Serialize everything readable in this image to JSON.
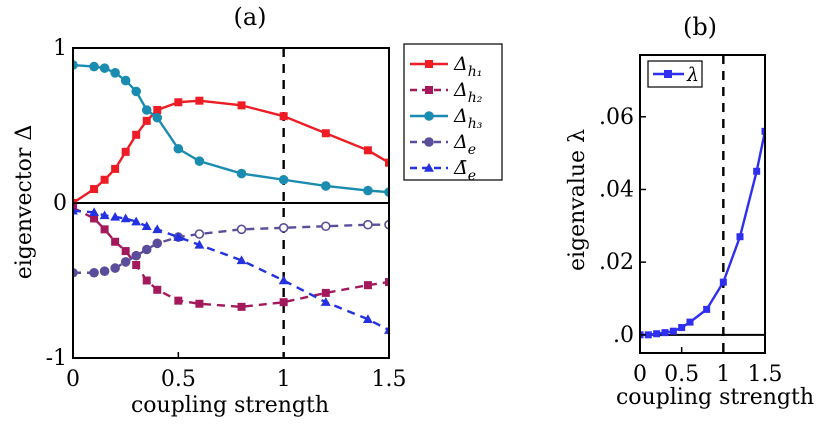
{
  "chart_data": [
    {
      "type": "line",
      "title": "(a)",
      "xlabel": "coupling strength",
      "ylabel": "eigenvector Δ",
      "xlim": [
        0,
        1.5
      ],
      "ylim": [
        -1,
        1
      ],
      "xticks": [
        "0",
        "0.5",
        "1",
        "1.5"
      ],
      "yticks": [
        "-1",
        "0",
        "1"
      ],
      "reference_lines": [
        {
          "orientation": "vertical",
          "x": 1,
          "style": "dashed",
          "color": "#000000"
        }
      ],
      "legend_position": "outside-right",
      "series": [
        {
          "name": "Δh1",
          "label_base": "Δ",
          "label_sub": "h₁",
          "color": "#ee1c24",
          "marker": "square",
          "dash": false,
          "x": [
            0,
            0.1,
            0.15,
            0.2,
            0.25,
            0.3,
            0.35,
            0.4,
            0.5,
            0.6,
            0.8,
            1.0,
            1.2,
            1.4,
            1.5
          ],
          "y": [
            0.0,
            0.09,
            0.15,
            0.22,
            0.33,
            0.44,
            0.53,
            0.6,
            0.65,
            0.66,
            0.63,
            0.56,
            0.45,
            0.34,
            0.26
          ]
        },
        {
          "name": "Δh2",
          "label_base": "Δ",
          "label_sub": "h₂",
          "color": "#a3195b",
          "marker": "square",
          "dash": true,
          "x": [
            0,
            0.1,
            0.15,
            0.2,
            0.25,
            0.3,
            0.35,
            0.4,
            0.5,
            0.6,
            0.8,
            1.0,
            1.2,
            1.4,
            1.5
          ],
          "y": [
            -0.03,
            -0.1,
            -0.17,
            -0.25,
            -0.31,
            -0.4,
            -0.5,
            -0.56,
            -0.63,
            -0.65,
            -0.67,
            -0.64,
            -0.58,
            -0.53,
            -0.51
          ]
        },
        {
          "name": "Δh3",
          "label_base": "Δ",
          "label_sub": "h₃",
          "color": "#1a8cb0",
          "marker": "circle",
          "dash": false,
          "x": [
            0,
            0.1,
            0.15,
            0.2,
            0.25,
            0.3,
            0.35,
            0.4,
            0.5,
            0.6,
            0.8,
            1.0,
            1.2,
            1.4,
            1.5
          ],
          "y": [
            0.89,
            0.88,
            0.87,
            0.84,
            0.79,
            0.72,
            0.6,
            0.55,
            0.35,
            0.27,
            0.19,
            0.15,
            0.11,
            0.08,
            0.07
          ]
        },
        {
          "name": "Δe",
          "label_base": "Δ",
          "label_sub": "e",
          "color": "#5b4d9a",
          "marker": "circle",
          "dash": true,
          "hollow_from_x": 0.6,
          "x": [
            0,
            0.1,
            0.15,
            0.2,
            0.25,
            0.3,
            0.35,
            0.4,
            0.5,
            0.6,
            0.8,
            1.0,
            1.2,
            1.4,
            1.5
          ],
          "y": [
            -0.45,
            -0.45,
            -0.44,
            -0.42,
            -0.38,
            -0.34,
            -0.3,
            -0.26,
            -0.22,
            -0.2,
            -0.17,
            -0.16,
            -0.15,
            -0.14,
            -0.14
          ]
        },
        {
          "name": "Δ̄e",
          "label_base": "Δ̄",
          "label_sub": "e",
          "color": "#2431e0",
          "marker": "triangle",
          "dash": true,
          "x": [
            0,
            0.1,
            0.15,
            0.2,
            0.25,
            0.3,
            0.35,
            0.4,
            0.5,
            0.6,
            0.8,
            1.0,
            1.2,
            1.4,
            1.5
          ],
          "y": [
            -0.05,
            -0.06,
            -0.08,
            -0.09,
            -0.1,
            -0.12,
            -0.15,
            -0.17,
            -0.22,
            -0.27,
            -0.37,
            -0.5,
            -0.64,
            -0.75,
            -0.82
          ]
        }
      ]
    },
    {
      "type": "line",
      "title": "(b)",
      "xlabel": "coupling strength",
      "ylabel": "eigenvalue λ",
      "xlim": [
        0,
        1.5
      ],
      "ylim": [
        -0.005,
        0.077
      ],
      "xticks": [
        "0",
        "0.5",
        "1",
        "1.5"
      ],
      "yticks": [
        ".0",
        ".02",
        ".04",
        ".06"
      ],
      "reference_lines": [
        {
          "orientation": "vertical",
          "x": 1,
          "style": "dashed",
          "color": "#000000"
        }
      ],
      "legend_position": "top-left",
      "series": [
        {
          "name": "λ",
          "label_base": "λ",
          "label_sub": "",
          "color": "#2f2ff0",
          "marker": "square",
          "dash": false,
          "x": [
            0,
            0.1,
            0.2,
            0.3,
            0.4,
            0.5,
            0.6,
            0.8,
            1.0,
            1.2,
            1.4,
            1.5
          ],
          "y": [
            0.0,
            0.0,
            0.0003,
            0.0006,
            0.001,
            0.002,
            0.0035,
            0.007,
            0.0145,
            0.027,
            0.045,
            0.056
          ]
        }
      ]
    }
  ]
}
